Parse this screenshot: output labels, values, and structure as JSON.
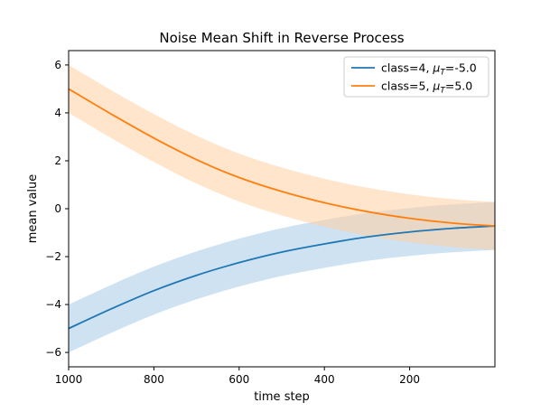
{
  "chart_data": {
    "type": "line",
    "title": "Noise Mean Shift in Reverse Process",
    "xlabel": "time step",
    "ylabel": "mean value",
    "xlim": [
      1000,
      0
    ],
    "ylim": [
      -6.6,
      6.6
    ],
    "x_inverted": true,
    "xticks": [
      1000,
      800,
      600,
      400,
      200
    ],
    "xtick_labels": [
      "1000",
      "800",
      "600",
      "400",
      "200"
    ],
    "yticks": [
      -6,
      -4,
      -2,
      0,
      2,
      4,
      6
    ],
    "ytick_labels": [
      "−6",
      "−4",
      "−2",
      "0",
      "2",
      "4",
      "6"
    ],
    "grid": false,
    "legend_position": "upper-right",
    "x": [
      1000,
      900,
      800,
      700,
      600,
      500,
      400,
      300,
      200,
      100,
      0
    ],
    "series": [
      {
        "name": "class=4, μ_T=-5.0",
        "legend_prefix": "class=4, ",
        "legend_mu": "μ",
        "legend_sub": "T",
        "legend_suffix": "=-5.0",
        "color": "#1f77b4",
        "band_color": "#a6cbe6",
        "values": [
          -5.0,
          -4.18,
          -3.42,
          -2.78,
          -2.25,
          -1.81,
          -1.47,
          -1.18,
          -0.97,
          -0.82,
          -0.72
        ],
        "band_halfwidth": 1.0
      },
      {
        "name": "class=5, μ_T=5.0",
        "legend_prefix": "class=5, ",
        "legend_mu": "μ",
        "legend_sub": "T",
        "legend_suffix": "=5.0",
        "color": "#ff7f0e",
        "band_color": "#ffcfa3",
        "values": [
          5.0,
          3.95,
          2.95,
          2.05,
          1.3,
          0.72,
          0.25,
          -0.12,
          -0.4,
          -0.6,
          -0.72
        ],
        "band_halfwidth": 1.0
      }
    ]
  }
}
